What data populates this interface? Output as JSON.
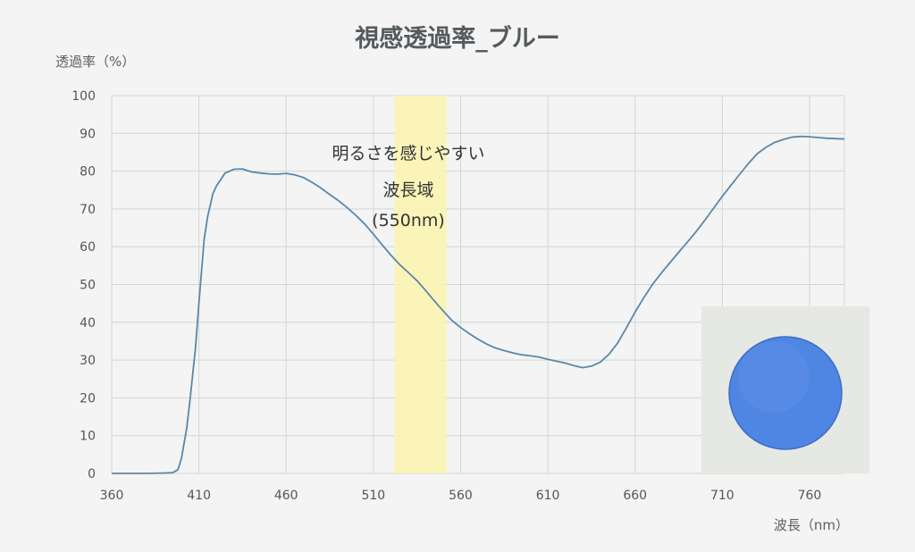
{
  "chart_data": {
    "type": "line",
    "title": "視感透過率_ブルー",
    "xlabel": "波長（nm）",
    "ylabel": "透過率（%）",
    "xlim": [
      360,
      780
    ],
    "ylim": [
      0,
      100
    ],
    "x_ticks": [
      360,
      410,
      460,
      510,
      560,
      610,
      660,
      710,
      760
    ],
    "y_ticks": [
      0,
      10,
      20,
      30,
      40,
      50,
      60,
      70,
      80,
      90,
      100
    ],
    "grid": true,
    "legend": "none",
    "colors": {
      "line": "#5b87a8",
      "band": "#fbf4b3",
      "grid": "#d3d6d8",
      "sample": "#4f86e3"
    },
    "series": [
      {
        "x": [
          360,
          380,
          390,
          395,
          398,
          400,
          403,
          405,
          408,
          410,
          413,
          415,
          418,
          420,
          425,
          430,
          435,
          440,
          445,
          450,
          455,
          460,
          465,
          470,
          475,
          480,
          485,
          490,
          495,
          500,
          505,
          510,
          515,
          520,
          525,
          530,
          535,
          540,
          545,
          550,
          555,
          560,
          565,
          570,
          575,
          580,
          585,
          590,
          595,
          600,
          605,
          610,
          615,
          620,
          625,
          630,
          635,
          640,
          645,
          650,
          655,
          660,
          665,
          670,
          675,
          680,
          685,
          690,
          695,
          700,
          705,
          710,
          715,
          720,
          725,
          730,
          735,
          740,
          745,
          750,
          755,
          760,
          765,
          770,
          775,
          780
        ],
        "y": [
          0,
          0,
          0.1,
          0.2,
          1,
          4,
          12,
          20,
          33,
          45,
          62,
          68,
          74,
          76,
          79.5,
          80.5,
          80.6,
          79.8,
          79.5,
          79.3,
          79.2,
          79.4,
          79.0,
          78.3,
          77.0,
          75.5,
          73.8,
          72.2,
          70.3,
          68.3,
          66.0,
          63.3,
          60.5,
          57.8,
          55.3,
          53.2,
          51.0,
          48.4,
          45.6,
          43.0,
          40.5,
          38.6,
          37.0,
          35.5,
          34.2,
          33.2,
          32.5,
          31.9,
          31.4,
          31.1,
          30.8,
          30.2,
          29.7,
          29.2,
          28.5,
          28.0,
          28.4,
          29.4,
          31.5,
          34.5,
          38.5,
          42.7,
          46.5,
          50.0,
          53.0,
          55.8,
          58.5,
          61.2,
          64.0,
          67.0,
          70.2,
          73.3,
          76.3,
          79.2,
          82.0,
          84.6,
          86.3,
          87.6,
          88.4,
          89.0,
          89.2,
          89.1,
          88.9,
          88.7,
          88.6,
          88.5
        ]
      }
    ],
    "annotations": {
      "highlight_band": {
        "x_from": 522,
        "x_to": 552
      },
      "label_lines": [
        "明るさを感じやすい",
        "波長域",
        "(550nm)"
      ]
    }
  }
}
